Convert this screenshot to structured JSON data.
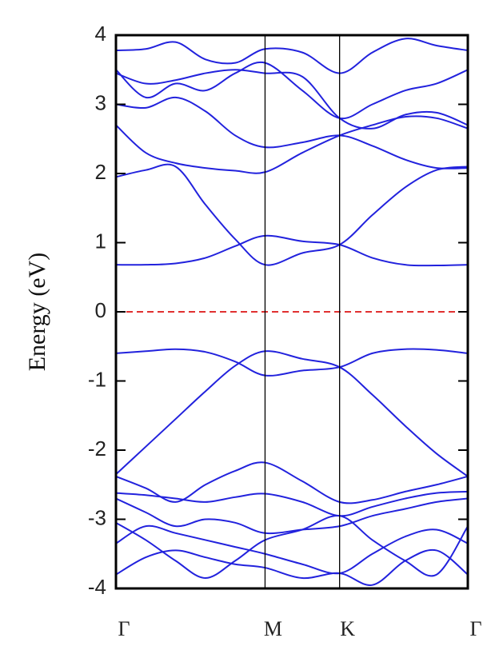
{
  "chart_data": {
    "type": "line",
    "y_label": "Energy (eV)",
    "x": [
      0,
      0.2,
      0.4,
      0.6,
      0.8,
      1.0,
      1.25,
      1.5,
      1.72,
      1.94,
      2.15,
      2.36
    ],
    "xlim": [
      0,
      2.36
    ],
    "xticks": [
      {
        "value": 0,
        "label": "Γ"
      },
      {
        "value": 1,
        "label": "M"
      },
      {
        "value": 1.5,
        "label": "K"
      },
      {
        "value": 2.36,
        "label": "Γ"
      }
    ],
    "tick_lines": true,
    "ylim": [
      -4,
      4
    ],
    "yticks": [
      -4,
      -3,
      -2,
      -1,
      0,
      1,
      2,
      3,
      4
    ],
    "hline": {
      "value": 0,
      "color": "#e03030",
      "dashed": true
    },
    "series": [
      {
        "color": "#2222dd",
        "values": [
          -0.6,
          -0.57,
          -0.54,
          -0.58,
          -0.72,
          -0.92,
          -0.85,
          -0.8,
          -0.6,
          -0.54,
          -0.55,
          -0.6
        ]
      },
      {
        "color": "#2222dd",
        "values": [
          -2.35,
          -1.95,
          -1.55,
          -1.15,
          -0.78,
          -0.57,
          -0.68,
          -0.8,
          -1.2,
          -1.65,
          -2.05,
          -2.38
        ]
      },
      {
        "color": "#2222dd",
        "values": [
          0.68,
          0.68,
          0.7,
          0.78,
          0.95,
          1.1,
          1.02,
          0.97,
          0.78,
          0.68,
          0.67,
          0.68
        ]
      },
      {
        "color": "#2222dd",
        "values": [
          1.95,
          2.05,
          2.1,
          1.55,
          1.05,
          0.68,
          0.85,
          0.97,
          1.4,
          1.8,
          2.05,
          2.1
        ]
      },
      {
        "color": "#2222dd",
        "values": [
          2.7,
          2.3,
          2.15,
          2.08,
          2.04,
          2.02,
          2.3,
          2.55,
          2.7,
          2.82,
          2.8,
          2.65
        ]
      },
      {
        "color": "#2222dd",
        "values": [
          3.0,
          2.95,
          3.1,
          2.9,
          2.55,
          2.38,
          2.45,
          2.55,
          2.4,
          2.2,
          2.08,
          2.08
        ]
      },
      {
        "color": "#2222dd",
        "values": [
          3.45,
          3.3,
          3.35,
          3.45,
          3.5,
          3.45,
          3.4,
          2.8,
          2.65,
          2.85,
          2.88,
          2.7
        ]
      },
      {
        "color": "#2222dd",
        "values": [
          3.5,
          3.1,
          3.3,
          3.2,
          3.45,
          3.6,
          3.2,
          2.8,
          3.0,
          3.2,
          3.3,
          3.5
        ]
      },
      {
        "color": "#2222dd",
        "values": [
          3.78,
          3.8,
          3.9,
          3.65,
          3.6,
          3.8,
          3.75,
          3.45,
          3.75,
          3.95,
          3.85,
          3.78
        ]
      },
      {
        "color": "#2222dd",
        "values": [
          -2.38,
          -2.55,
          -2.75,
          -2.5,
          -2.3,
          -2.18,
          -2.45,
          -2.75,
          -2.72,
          -2.6,
          -2.5,
          -2.38
        ]
      },
      {
        "color": "#2222dd",
        "values": [
          -2.62,
          -2.65,
          -2.7,
          -2.75,
          -2.68,
          -2.63,
          -2.75,
          -2.95,
          -2.82,
          -2.7,
          -2.62,
          -2.6
        ]
      },
      {
        "color": "#2222dd",
        "values": [
          -2.7,
          -2.9,
          -3.1,
          -3.0,
          -3.05,
          -3.2,
          -3.15,
          -3.1,
          -2.95,
          -2.85,
          -2.75,
          -2.7
        ]
      },
      {
        "color": "#2222dd",
        "values": [
          -3.05,
          -3.3,
          -3.6,
          -3.85,
          -3.6,
          -3.3,
          -3.15,
          -2.95,
          -3.3,
          -3.6,
          -3.8,
          -3.1
        ]
      },
      {
        "color": "#2222dd",
        "values": [
          -3.35,
          -3.1,
          -3.2,
          -3.3,
          -3.4,
          -3.5,
          -3.65,
          -3.78,
          -3.5,
          -3.25,
          -3.15,
          -3.35
        ]
      },
      {
        "color": "#2222dd",
        "values": [
          -3.8,
          -3.55,
          -3.45,
          -3.55,
          -3.65,
          -3.7,
          -3.85,
          -3.78,
          -3.95,
          -3.6,
          -3.45,
          -3.8
        ]
      }
    ]
  }
}
